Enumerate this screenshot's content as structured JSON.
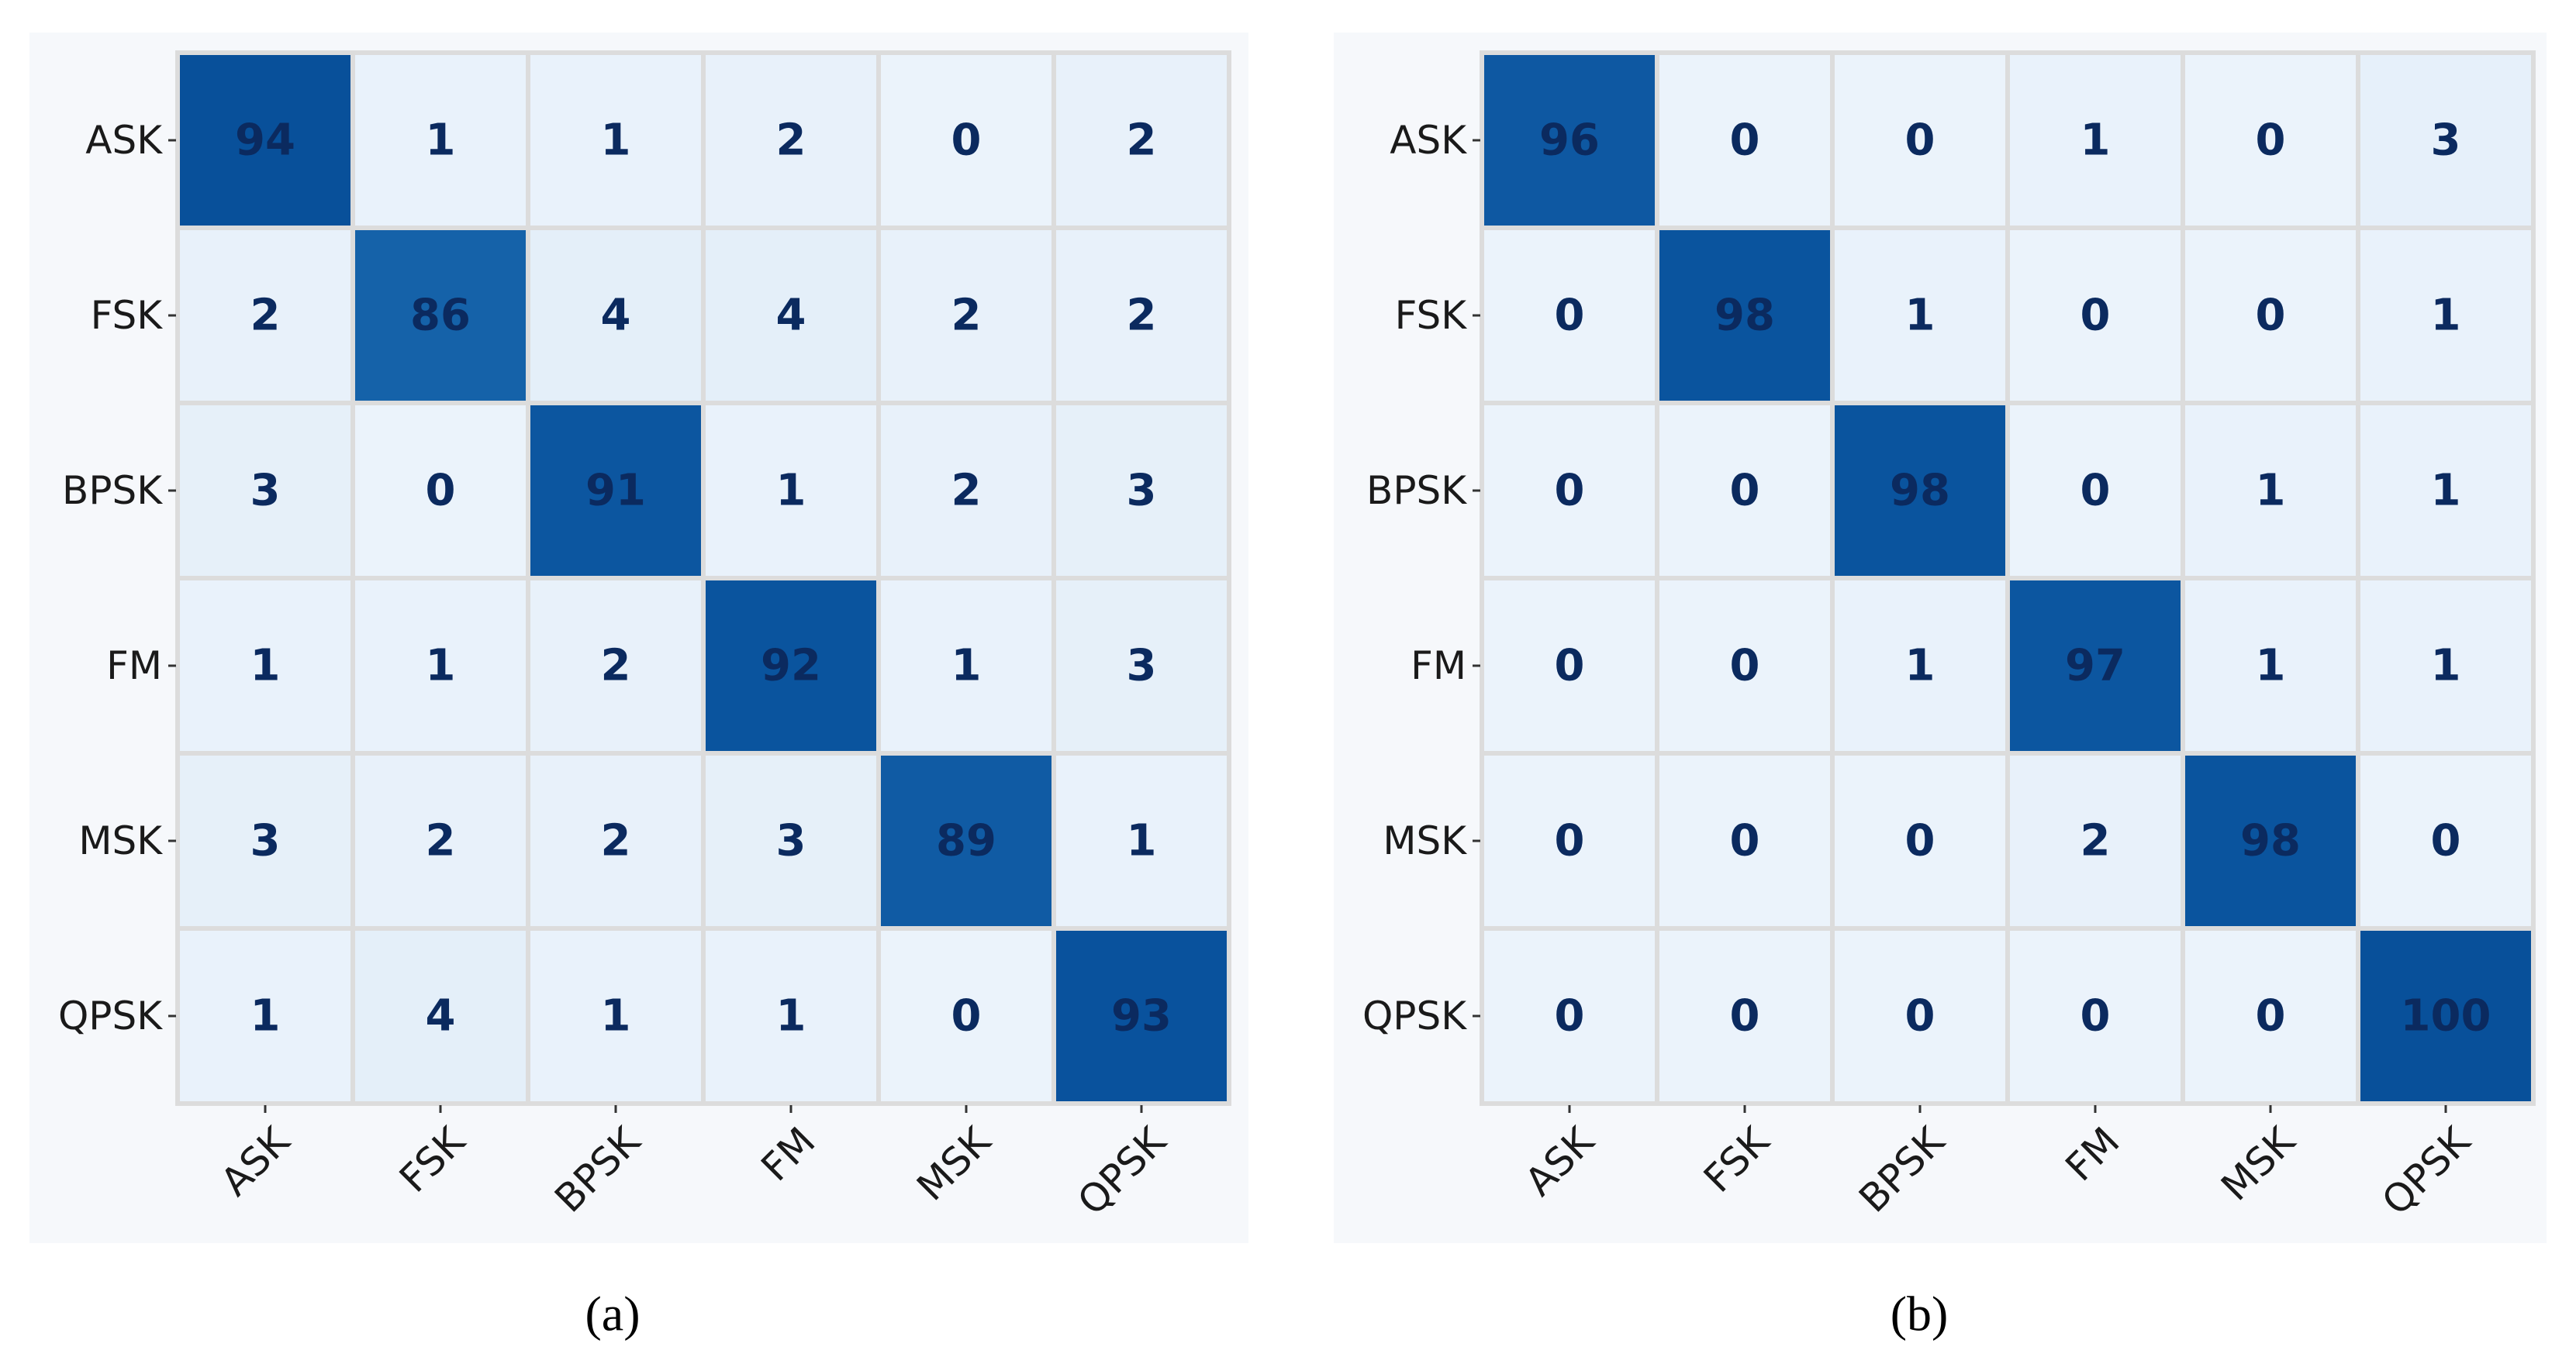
{
  "chart_data": [
    {
      "type": "heatmap",
      "caption": "(a)",
      "x_categories": [
        "ASK",
        "FSK",
        "BPSK",
        "FM",
        "MSK",
        "QPSK"
      ],
      "y_categories": [
        "ASK",
        "FSK",
        "BPSK",
        "FM",
        "MSK",
        "QPSK"
      ],
      "values": [
        [
          94,
          1,
          1,
          2,
          0,
          2
        ],
        [
          2,
          86,
          4,
          4,
          2,
          2
        ],
        [
          3,
          0,
          91,
          1,
          2,
          3
        ],
        [
          1,
          1,
          2,
          92,
          1,
          3
        ],
        [
          3,
          2,
          2,
          3,
          89,
          1
        ],
        [
          1,
          4,
          1,
          1,
          0,
          93
        ]
      ],
      "colormap": "Blues"
    },
    {
      "type": "heatmap",
      "caption": "(b)",
      "x_categories": [
        "ASK",
        "FSK",
        "BPSK",
        "FM",
        "MSK",
        "QPSK"
      ],
      "y_categories": [
        "ASK",
        "FSK",
        "BPSK",
        "FM",
        "MSK",
        "QPSK"
      ],
      "values": [
        [
          96,
          0,
          0,
          1,
          0,
          3
        ],
        [
          0,
          98,
          1,
          0,
          0,
          1
        ],
        [
          0,
          0,
          98,
          0,
          1,
          1
        ],
        [
          0,
          0,
          1,
          97,
          1,
          1
        ],
        [
          0,
          0,
          0,
          2,
          98,
          0
        ],
        [
          0,
          0,
          0,
          0,
          0,
          100
        ]
      ],
      "colormap": "Blues"
    }
  ]
}
